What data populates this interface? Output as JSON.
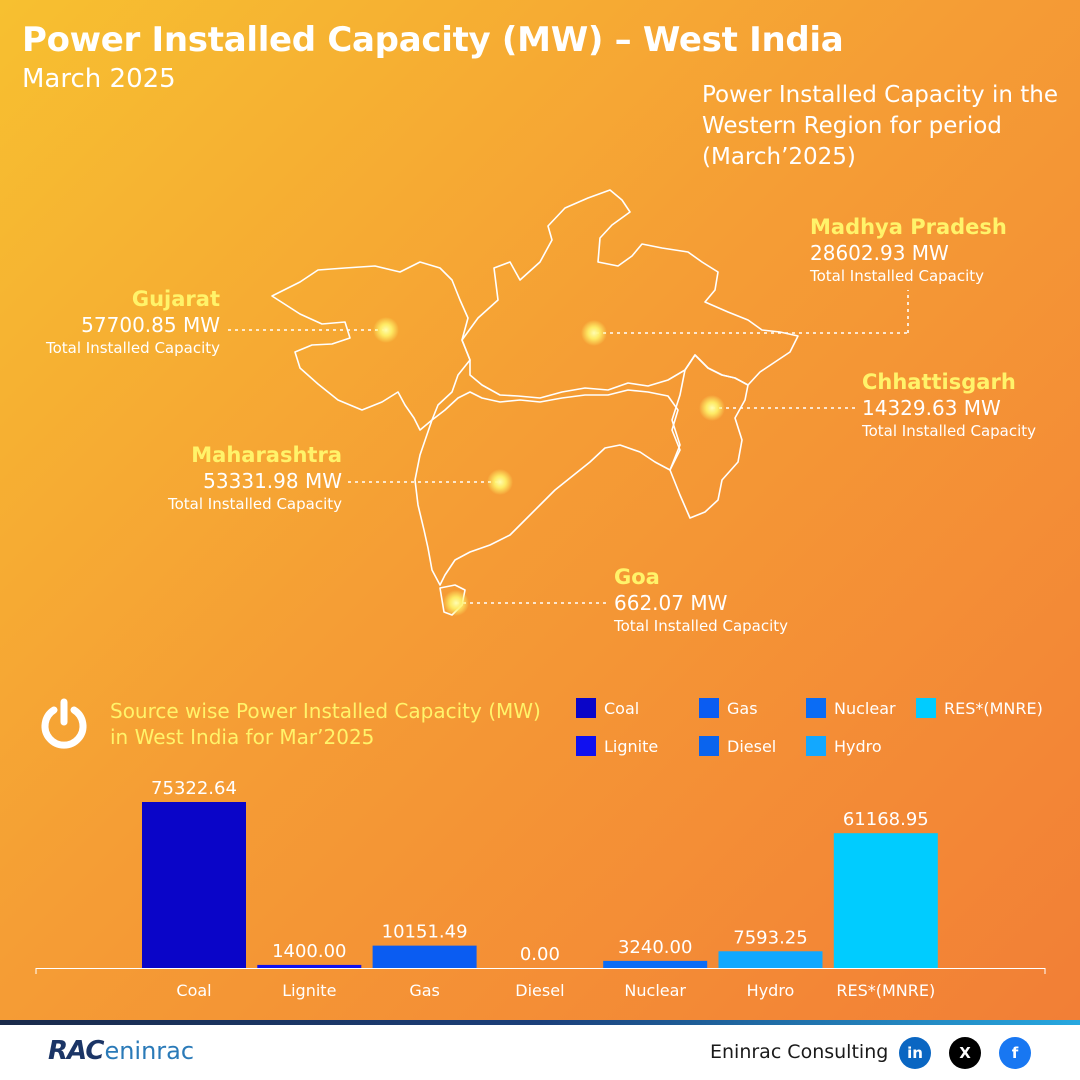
{
  "header": {
    "title": "Power Installed Capacity (MW) – West India",
    "subtitle": "March 2025",
    "description": "Power Installed Capacity in the Western Region for period (March’2025)"
  },
  "states": [
    {
      "name": "Gujarat",
      "value": "57700.85 MW",
      "caption": "Total Installed Capacity"
    },
    {
      "name": "Madhya Pradesh",
      "value": "28602.93 MW",
      "caption": "Total Installed Capacity"
    },
    {
      "name": "Chhattisgarh",
      "value": "14329.63 MW",
      "caption": "Total Installed Capacity"
    },
    {
      "name": "Maharashtra",
      "value": "53331.98 MW",
      "caption": "Total Installed Capacity"
    },
    {
      "name": "Goa",
      "value": "662.07 MW",
      "caption": "Total Installed Capacity"
    }
  ],
  "source_section": {
    "title": "Source wise Power Installed Capacity (MW) in West India for Mar’2025",
    "icon": "power-icon"
  },
  "legend": [
    {
      "label": "Coal",
      "color": "#0a05c8"
    },
    {
      "label": "Gas",
      "color": "#0a5cf2"
    },
    {
      "label": "Nuclear",
      "color": "#0a6cf5"
    },
    {
      "label": "RES*(MNRE)",
      "color": "#00ccff"
    },
    {
      "label": "Lignite",
      "color": "#1010f0"
    },
    {
      "label": "Diesel",
      "color": "#0a64ee"
    },
    {
      "label": "Hydro",
      "color": "#12a8ff"
    }
  ],
  "chart_data": {
    "type": "bar",
    "categories": [
      "Coal",
      "Lignite",
      "Gas",
      "Diesel",
      "Nuclear",
      "Hydro",
      "RES*(MNRE)"
    ],
    "values": [
      75322.64,
      1400.0,
      10151.49,
      0.0,
      3240.0,
      7593.25,
      61168.95
    ],
    "value_labels": [
      "75322.64",
      "1400.00",
      "10151.49",
      "0.00",
      "3240.00",
      "7593.25",
      "61168.95"
    ],
    "colors": [
      "#0a05c8",
      "#1010f0",
      "#0a5cf2",
      "#0a64ee",
      "#0a6cf5",
      "#12a8ff",
      "#00ccff"
    ],
    "ylim": [
      0,
      75322.64
    ],
    "grid": false,
    "legend_position": "top-right"
  },
  "footer": {
    "logo_left": "RAC",
    "logo_right": "eninrac",
    "company": "Eninrac Consulting",
    "social": [
      {
        "icon": "linkedin-icon",
        "text": "in",
        "color": "#0a66c2"
      },
      {
        "icon": "x-icon",
        "text": "X",
        "color": "#000000"
      },
      {
        "icon": "facebook-icon",
        "text": "f",
        "color": "#1877f2"
      }
    ]
  }
}
